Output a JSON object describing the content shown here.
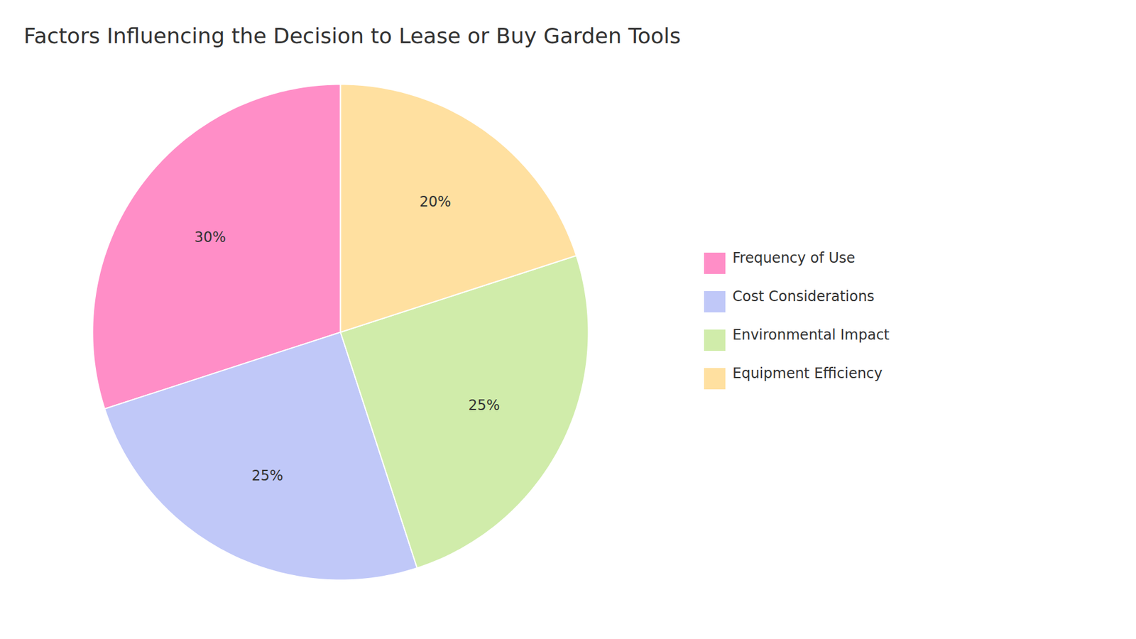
{
  "chart_data": {
    "type": "pie",
    "title": "Factors Influencing the Decision to Lease or Buy Garden Tools",
    "categories": [
      "Frequency of Use",
      "Cost Considerations",
      "Environmental Impact",
      "Equipment Efficiency"
    ],
    "values": [
      30,
      25,
      25,
      20
    ],
    "value_labels": [
      "30%",
      "25%",
      "25%",
      "20%"
    ],
    "colors": [
      "#FF8EC7",
      "#C0C8F8",
      "#D0ECAA",
      "#FFE0A0"
    ],
    "data_labels": true,
    "legend": "right"
  }
}
